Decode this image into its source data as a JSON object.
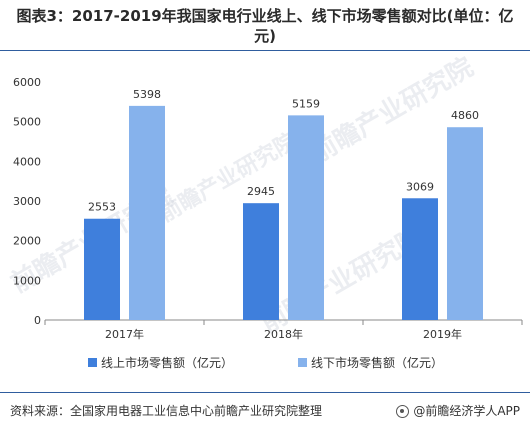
{
  "header": {
    "title": "图表3：2017-2019年我国家电行业线上、线下市场零售额对比(单位：亿元)"
  },
  "chart_data": {
    "type": "bar",
    "categories": [
      "2017年",
      "2018年",
      "2019年"
    ],
    "series": [
      {
        "name": "线上市场零售额（亿元）",
        "values": [
          2553,
          2945,
          3069
        ],
        "color": "#3f7fdc"
      },
      {
        "name": "线下市场零售额（亿元）",
        "values": [
          5398,
          5159,
          4860
        ],
        "color": "#86b2ec"
      }
    ],
    "ylim": [
      0,
      6000
    ],
    "yticks": [
      0,
      1000,
      2000,
      3000,
      4000,
      5000,
      6000
    ],
    "grid": false,
    "legend": "bottom"
  },
  "watermark": {
    "text": "前瞻产业研究院"
  },
  "footer": {
    "source": "资料来源：全国家用电器工业信息中心前瞻产业研究院整理",
    "brand": "@前瞻经济学人APP"
  }
}
